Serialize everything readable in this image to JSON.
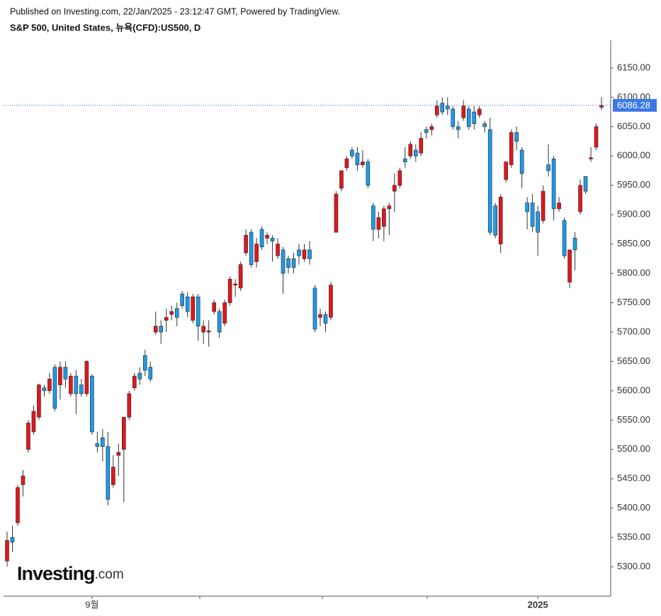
{
  "header": {
    "published": "Published on Investing.com, 22/Jan/2025 - 23:12:47 GMT, Powered by TradingView.",
    "title": "S&P 500, United States, 뉴욕(CFD):US500, D"
  },
  "logo": {
    "name": "Investing",
    "suffix": ".com"
  },
  "chart_data": {
    "type": "candlestick",
    "up_color": "#e3161c",
    "down_color": "#1e9be9",
    "open": [
      5310,
      5350,
      5375,
      5440,
      5500,
      5530,
      5555,
      5605,
      5600,
      5640,
      5610,
      5640,
      5595,
      5625,
      5610,
      5595,
      5625,
      5510,
      5520,
      5505,
      5440,
      5490,
      5500,
      5555,
      5605,
      5630,
      5660,
      5640,
      5700,
      5710,
      5720,
      5730,
      5740,
      5765,
      5760,
      5720,
      5760,
      5700,
      5700,
      5735,
      5735,
      5715,
      5750,
      5780,
      5775,
      5835,
      5870,
      5820,
      5875,
      5860,
      5860,
      5830,
      5840,
      5825,
      5825,
      5840,
      5825,
      5840,
      5775,
      5725,
      5730,
      5725,
      5870,
      5945,
      5980,
      6010,
      6005,
      5985,
      5990,
      5915,
      5875,
      5880,
      5910,
      5940,
      5950,
      5995,
      6000,
      6010,
      6005,
      6045,
      6045,
      6070,
      6090,
      6085,
      6080,
      6050,
      6065,
      6080,
      6075,
      6070,
      6055,
      6045,
      5915,
      5850,
      5960,
      5985,
      6040,
      6010,
      5920,
      5920,
      5905,
      5890,
      5985,
      5995,
      5910,
      5890,
      5785,
      5860,
      5905,
      5965,
      5995,
      6015,
      6083
    ],
    "high": [
      5360,
      5370,
      5440,
      5465,
      5550,
      5575,
      5612,
      5610,
      5630,
      5645,
      5650,
      5650,
      5630,
      5635,
      5620,
      5652,
      5628,
      5530,
      5535,
      5530,
      5490,
      5510,
      5555,
      5600,
      5630,
      5640,
      5670,
      5650,
      5735,
      5720,
      5740,
      5745,
      5750,
      5770,
      5768,
      5765,
      5765,
      5720,
      5720,
      5755,
      5740,
      5755,
      5795,
      5790,
      5820,
      5875,
      5875,
      5860,
      5880,
      5870,
      5865,
      5860,
      5845,
      5830,
      5835,
      5850,
      5850,
      5855,
      5780,
      5740,
      5735,
      5785,
      5940,
      5975,
      6000,
      6015,
      6015,
      6010,
      5995,
      5920,
      5905,
      5915,
      5920,
      5970,
      5980,
      6015,
      6025,
      6020,
      6040,
      6050,
      6055,
      6095,
      6100,
      6100,
      6085,
      6060,
      6095,
      6085,
      6085,
      6085,
      6060,
      6065,
      5920,
      5935,
      5990,
      6045,
      6050,
      6015,
      5930,
      5935,
      5915,
      5950,
      6020,
      6000,
      5930,
      5895,
      5840,
      5870,
      5960,
      5965,
      6015,
      6055,
      6100
    ],
    "low": [
      5300,
      5325,
      5370,
      5420,
      5495,
      5525,
      5550,
      5590,
      5595,
      5565,
      5585,
      5605,
      5590,
      5560,
      5590,
      5590,
      5525,
      5495,
      5480,
      5405,
      5435,
      5455,
      5410,
      5550,
      5600,
      5610,
      5625,
      5615,
      5695,
      5680,
      5700,
      5720,
      5710,
      5740,
      5725,
      5715,
      5685,
      5680,
      5675,
      5730,
      5690,
      5710,
      5745,
      5760,
      5770,
      5830,
      5810,
      5810,
      5840,
      5850,
      5820,
      5825,
      5765,
      5800,
      5800,
      5815,
      5820,
      5815,
      5700,
      5710,
      5700,
      5720,
      5870,
      5940,
      5975,
      5995,
      5975,
      5980,
      5945,
      5855,
      5860,
      5855,
      5865,
      5905,
      5945,
      5980,
      5995,
      5990,
      6000,
      6030,
      6035,
      6065,
      6070,
      6070,
      6045,
      6030,
      6060,
      6045,
      6045,
      6065,
      6040,
      5865,
      5860,
      5835,
      5955,
      5980,
      6010,
      5945,
      5875,
      5870,
      5830,
      5885,
      5965,
      5890,
      5905,
      5825,
      5775,
      5805,
      5900,
      5935,
      5990,
      6010,
      6078
    ],
    "close": [
      5345,
      5342,
      5435,
      5455,
      5545,
      5565,
      5610,
      5600,
      5620,
      5570,
      5640,
      5620,
      5625,
      5595,
      5595,
      5650,
      5530,
      5505,
      5505,
      5415,
      5470,
      5495,
      5555,
      5595,
      5625,
      5620,
      5635,
      5620,
      5710,
      5700,
      5725,
      5735,
      5725,
      5745,
      5735,
      5760,
      5710,
      5710,
      5702,
      5750,
      5700,
      5750,
      5790,
      5782,
      5815,
      5865,
      5815,
      5850,
      5845,
      5865,
      5855,
      5850,
      5800,
      5810,
      5810,
      5830,
      5840,
      5825,
      5705,
      5730,
      5715,
      5780,
      5935,
      5975,
      5995,
      6000,
      5985,
      5990,
      5950,
      5875,
      5895,
      5910,
      5915,
      5950,
      5975,
      5990,
      6020,
      6000,
      6030,
      6040,
      6050,
      6085,
      6075,
      6080,
      6050,
      6045,
      6085,
      6050,
      6055,
      6080,
      6050,
      5870,
      5865,
      5930,
      5990,
      6040,
      6025,
      5970,
      5905,
      5880,
      5870,
      5940,
      5975,
      5910,
      5920,
      5830,
      5840,
      5840,
      5950,
      5940,
      5997,
      6050,
      6086.28
    ],
    "categories": [
      null,
      null,
      null,
      null,
      null,
      null,
      null,
      null,
      null,
      null,
      null,
      null,
      null,
      null,
      null,
      null,
      "9월",
      null,
      null,
      null,
      null,
      null,
      null,
      null,
      null,
      null,
      null,
      null,
      null,
      null,
      null,
      null,
      null,
      null,
      null,
      null,
      null,
      null,
      null,
      null,
      null,
      null,
      null,
      null,
      null,
      null,
      null,
      null,
      null,
      null,
      null,
      null,
      null,
      null,
      null,
      null,
      null,
      null,
      null,
      null,
      null,
      null,
      null,
      null,
      null,
      null,
      null,
      null,
      null,
      null,
      null,
      null,
      null,
      null,
      null,
      null,
      null,
      null,
      null,
      null,
      null,
      null,
      null,
      null,
      null,
      null,
      null,
      null,
      null,
      null,
      null,
      null,
      null,
      null,
      null,
      null,
      null,
      null,
      null,
      null,
      "2025",
      null,
      null,
      null,
      null,
      null,
      null,
      null,
      null,
      null,
      null,
      null,
      null
    ],
    "ylim": [
      5250,
      6197
    ],
    "yticks": [
      {
        "value": 5300,
        "label": "5300.00"
      },
      {
        "value": 5350,
        "label": "5350.00"
      },
      {
        "value": 5400,
        "label": "5400.00"
      },
      {
        "value": 5450,
        "label": "5450.00"
      },
      {
        "value": 5500,
        "label": "5500.00"
      },
      {
        "value": 5550,
        "label": "5550.00"
      },
      {
        "value": 5600,
        "label": "5600.00"
      },
      {
        "value": 5650,
        "label": "5650.00"
      },
      {
        "value": 5700,
        "label": "5700.00"
      },
      {
        "value": 5750,
        "label": "5750.00"
      },
      {
        "value": 5800,
        "label": "5800.00"
      },
      {
        "value": 5850,
        "label": "5850.00"
      },
      {
        "value": 5900,
        "label": "5900.00"
      },
      {
        "value": 5950,
        "label": "5950.00"
      },
      {
        "value": 6000,
        "label": "6000.00"
      },
      {
        "value": 6050,
        "label": "6050.00"
      },
      {
        "value": 6100,
        "label": "6100.00"
      },
      {
        "value": 6150,
        "label": "6150.00"
      }
    ]
  }
}
